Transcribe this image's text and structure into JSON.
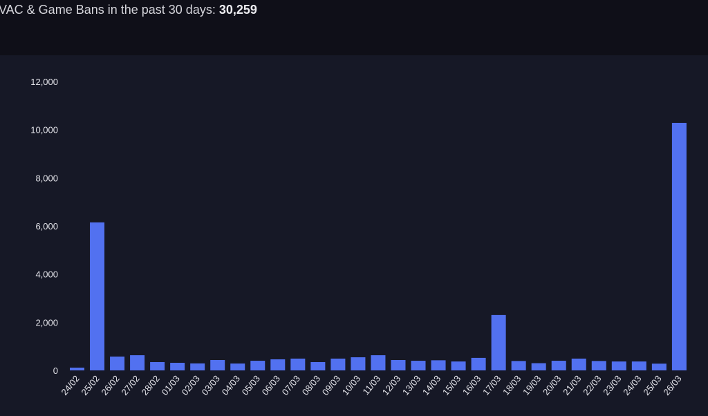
{
  "header": {
    "title_prefix": "VAC & Game Bans in the past 30 days:",
    "total": "30,259"
  },
  "colors": {
    "bar": "#5271f0",
    "background": "#161826",
    "header": "#0f0f18"
  },
  "chart_data": {
    "type": "bar",
    "title": "",
    "xlabel": "",
    "ylabel": "",
    "ylim": [
      0,
      12000
    ],
    "yticks": [
      "0",
      "2,000",
      "4,000",
      "6,000",
      "8,000",
      "10,000",
      "12,000"
    ],
    "grid": false,
    "categories": [
      "24/02",
      "25/02",
      "26/02",
      "27/02",
      "28/02",
      "01/03",
      "02/03",
      "03/03",
      "04/03",
      "05/03",
      "06/03",
      "07/03",
      "08/03",
      "09/03",
      "10/03",
      "11/03",
      "12/03",
      "13/03",
      "14/03",
      "15/03",
      "16/03",
      "17/03",
      "18/03",
      "19/03",
      "20/03",
      "21/03",
      "22/03",
      "23/03",
      "24/03",
      "25/03",
      "26/03"
    ],
    "values": [
      115,
      6150,
      575,
      630,
      345,
      315,
      290,
      430,
      285,
      400,
      460,
      490,
      345,
      490,
      545,
      630,
      430,
      400,
      420,
      370,
      520,
      2300,
      390,
      300,
      400,
      490,
      390,
      370,
      370,
      280,
      10280
    ]
  }
}
